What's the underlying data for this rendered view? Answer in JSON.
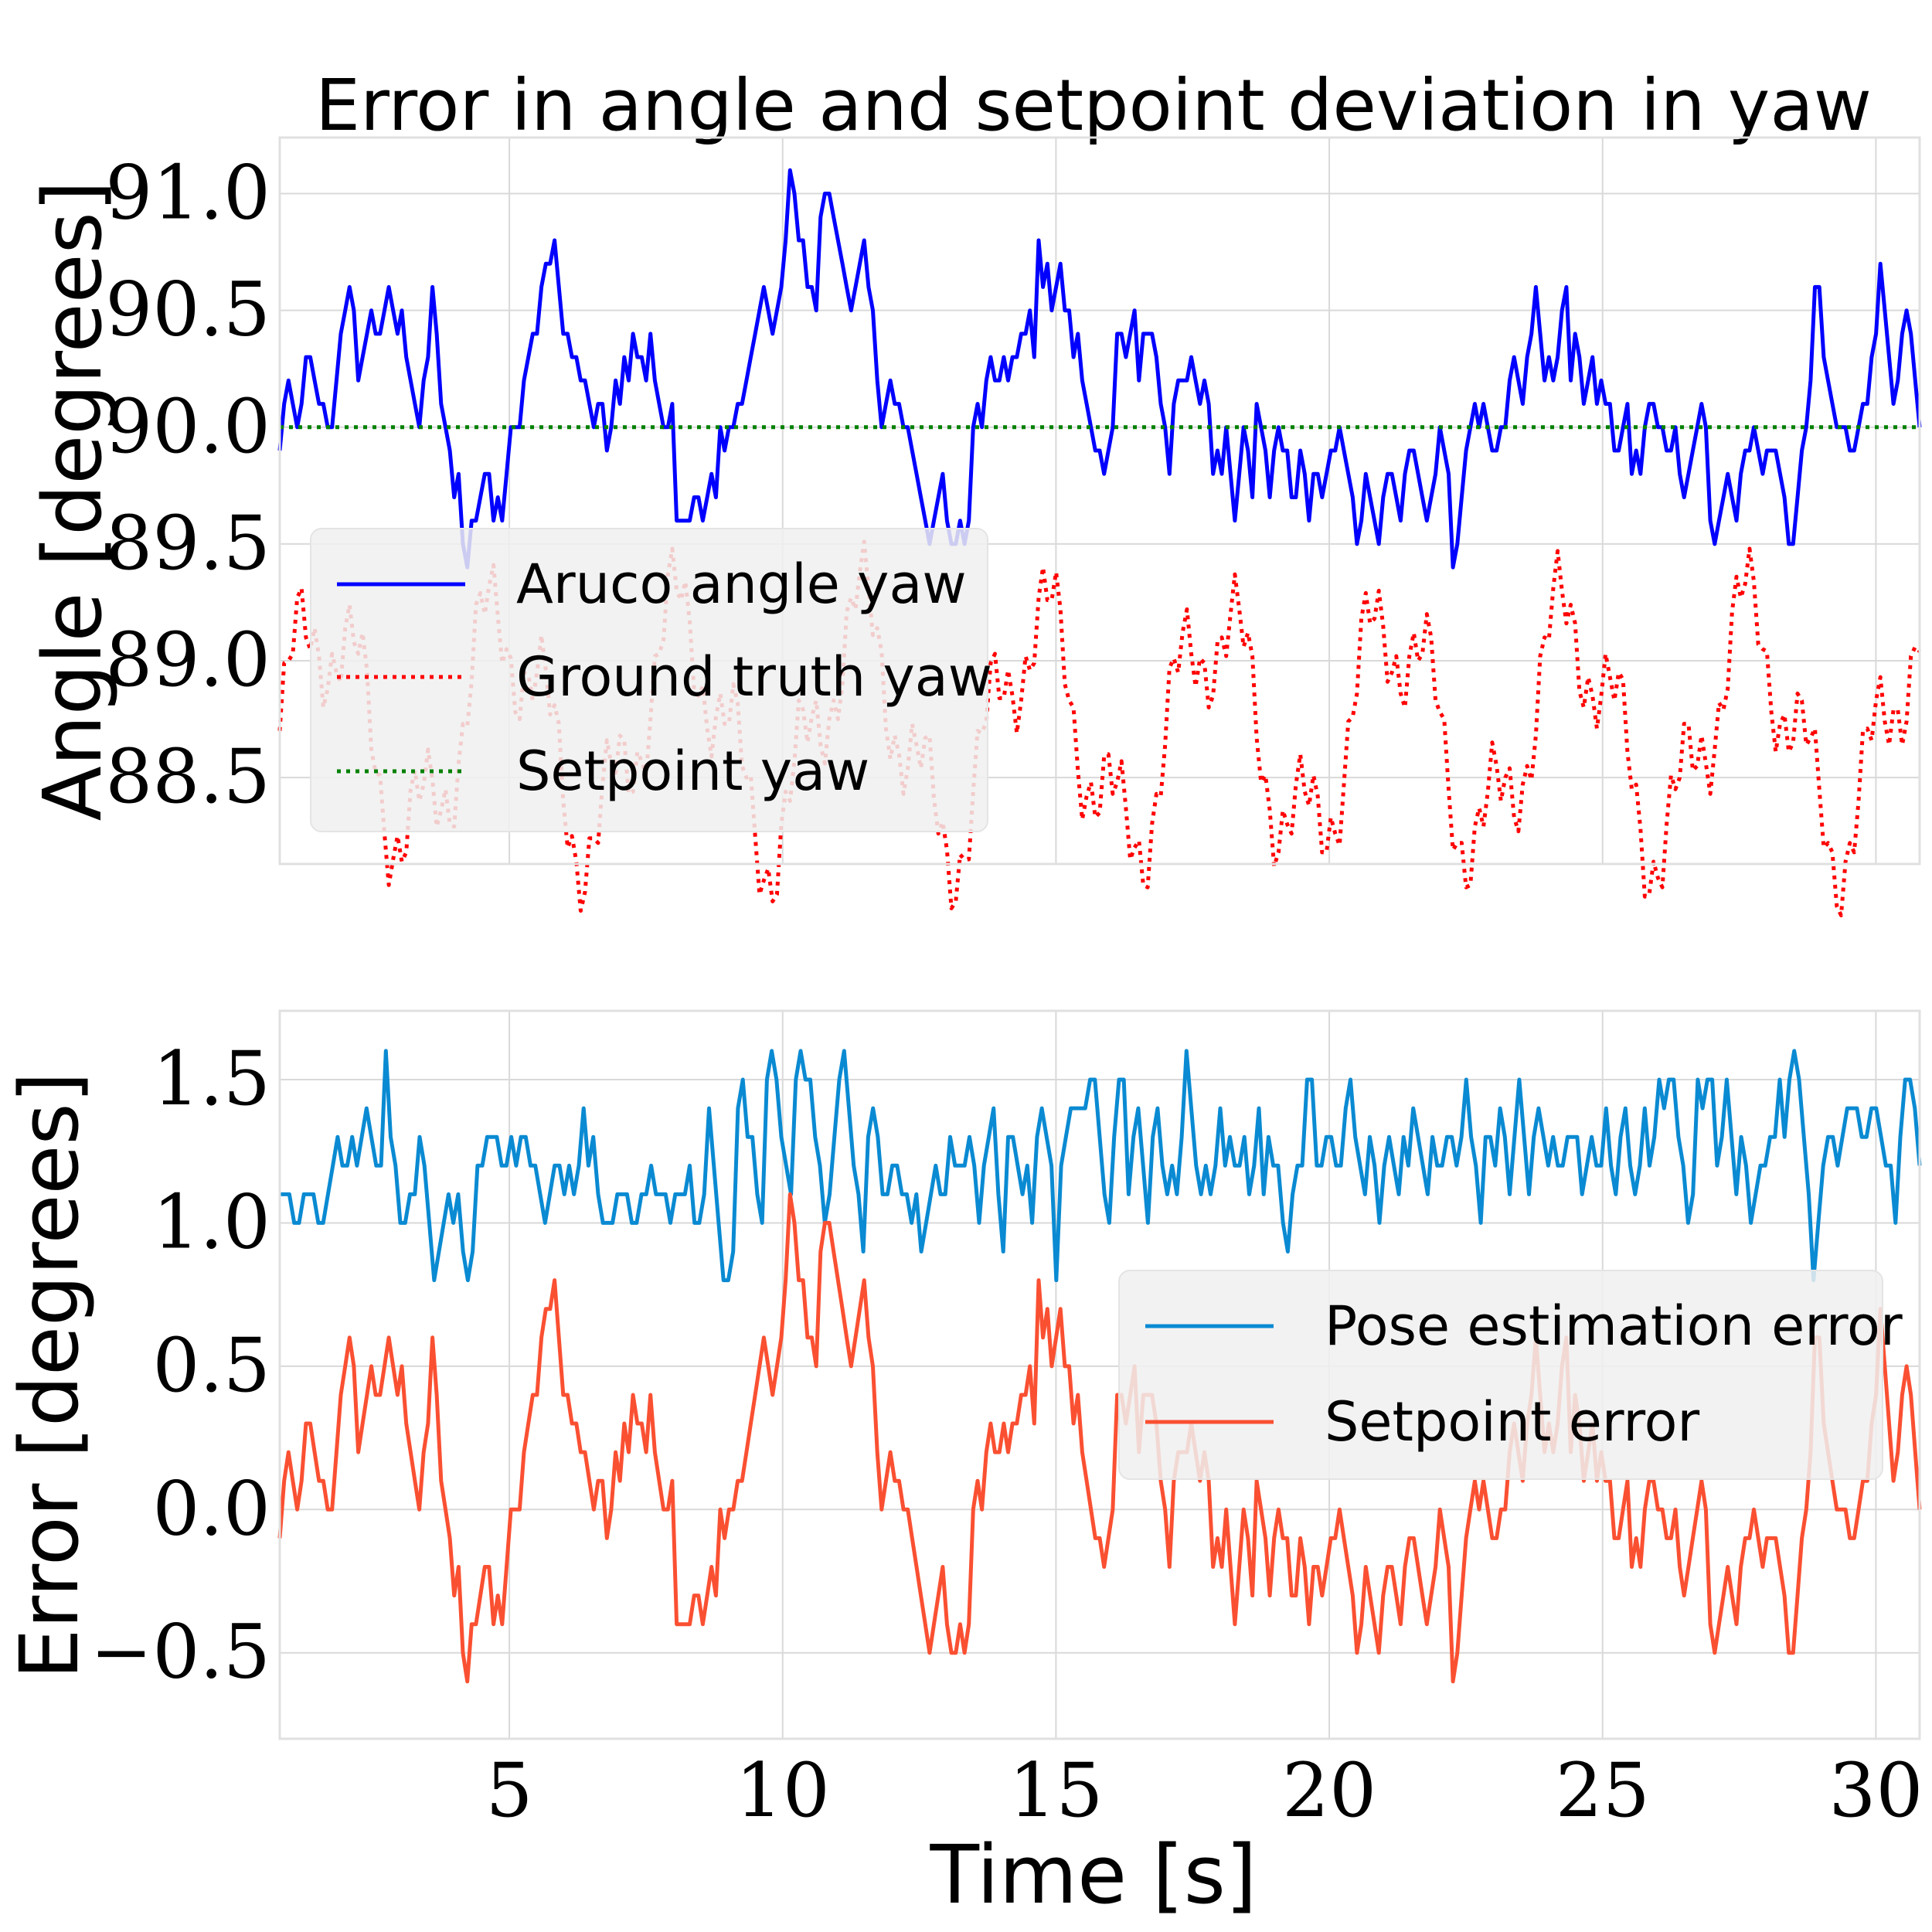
{
  "figure_title": "Error in angle and setpoint deviation in yaw",
  "xlabel": "Time [s]",
  "chart_data": [
    {
      "type": "line",
      "title": "Error in angle and setpoint deviation in yaw",
      "xlabel": "",
      "ylabel": "Angle [degrees]",
      "xlim": [
        0.8,
        30.8
      ],
      "ylim": [
        88.13,
        91.24
      ],
      "yticks": [
        88.5,
        89.0,
        89.5,
        90.0,
        90.5,
        91.0
      ],
      "ytick_labels": [
        "88.5",
        "89.0",
        "89.5",
        "90.0",
        "90.5",
        "91.0"
      ],
      "grid": true,
      "legend_position": "center-left",
      "series": [
        {
          "name": "Aruco angle yaw",
          "color": "#0000ff",
          "dash": "solid",
          "x": [],
          "values": []
        },
        {
          "name": "Ground truth yaw",
          "color": "#ff0000",
          "dash": "dotted",
          "x": [],
          "values": []
        },
        {
          "name": "Setpoint yaw",
          "color": "#008000",
          "dash": "dotted",
          "x": [
            0.8,
            30.8
          ],
          "values": [
            90.0,
            90.0
          ]
        }
      ]
    },
    {
      "type": "line",
      "title": "",
      "xlabel": "Time [s]",
      "ylabel": "Error [degrees]",
      "xlim": [
        0.8,
        30.8
      ],
      "ylim": [
        -0.8,
        1.74
      ],
      "xticks": [
        5,
        10,
        15,
        20,
        25,
        30
      ],
      "xtick_labels": [
        "5",
        "10",
        "15",
        "20",
        "25",
        "30"
      ],
      "yticks": [
        -0.5,
        0.0,
        0.5,
        1.0,
        1.5
      ],
      "ytick_labels": [
        "−0.5",
        "0.0",
        "0.5",
        "1.0",
        "1.5"
      ],
      "grid": true,
      "legend_position": "center-right",
      "series": [
        {
          "name": "Pose estimation error",
          "color": "#0a8ad2",
          "dash": "solid",
          "x": [],
          "values": []
        },
        {
          "name": "Setpoint error",
          "color": "#fa5032",
          "dash": "solid",
          "x": [],
          "values": []
        }
      ]
    }
  ]
}
